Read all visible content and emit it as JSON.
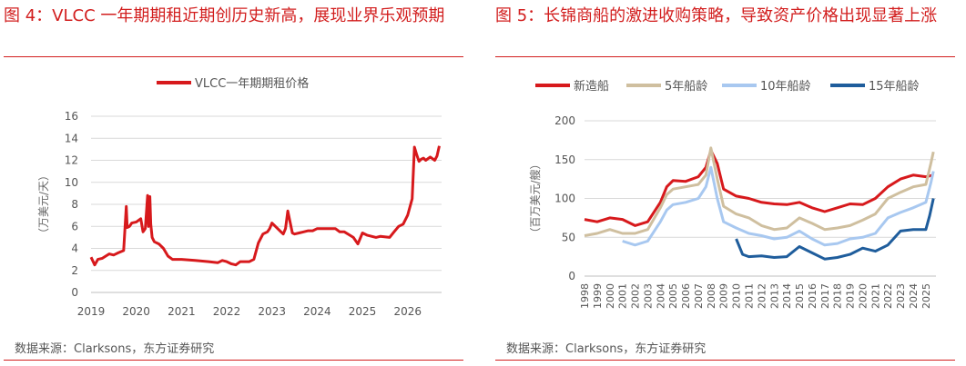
{
  "left": {
    "title": "图 4：VLCC 一年期期租近期创历史新高，展现业界乐观预期",
    "source": "数据来源：Clarksons，东方证券研究"
  },
  "right": {
    "title": "图 5：长锦商船的激进收购策略，导致资产价格出现显著上涨",
    "source": "数据来源：Clarksons，东方证券研究"
  },
  "chart_data": [
    {
      "type": "line",
      "title": "",
      "ylabel": "（万美元/天）",
      "xlabel": "",
      "ylim": [
        0,
        16
      ],
      "yticks": [
        0,
        2,
        4,
        6,
        8,
        10,
        12,
        14,
        16
      ],
      "xlim": [
        2019,
        2026.75
      ],
      "xticks": [
        "2019",
        "2020",
        "2021",
        "2022",
        "2023",
        "2024",
        "2025",
        "2026"
      ],
      "legend_position": "top-center",
      "grid": "horizontal",
      "colors": {
        "series": "#d7191c"
      },
      "series": [
        {
          "name": "VLCC一年期期租价格",
          "x": [
            2019.0,
            2019.08,
            2019.15,
            2019.25,
            2019.4,
            2019.5,
            2019.6,
            2019.72,
            2019.78,
            2019.8,
            2019.85,
            2019.9,
            2020.0,
            2020.1,
            2020.15,
            2020.2,
            2020.25,
            2020.27,
            2020.3,
            2020.32,
            2020.35,
            2020.4,
            2020.5,
            2020.6,
            2020.7,
            2020.8,
            2020.9,
            2021.0,
            2021.3,
            2021.6,
            2021.8,
            2021.9,
            2022.0,
            2022.1,
            2022.2,
            2022.3,
            2022.5,
            2022.6,
            2022.7,
            2022.8,
            2022.9,
            2022.95,
            2023.0,
            2023.2,
            2023.25,
            2023.3,
            2023.35,
            2023.45,
            2023.5,
            2023.6,
            2023.7,
            2023.8,
            2023.9,
            2024.0,
            2024.2,
            2024.4,
            2024.5,
            2024.6,
            2024.8,
            2024.9,
            2025.0,
            2025.1,
            2025.3,
            2025.4,
            2025.6,
            2025.7,
            2025.8,
            2025.9,
            2026.0,
            2026.1,
            2026.15,
            2026.2,
            2026.25,
            2026.3,
            2026.35,
            2026.4,
            2026.5,
            2026.6,
            2026.65,
            2026.7
          ],
          "values": [
            3.2,
            2.5,
            3.0,
            3.1,
            3.5,
            3.4,
            3.6,
            3.8,
            7.8,
            5.9,
            6.0,
            6.3,
            6.4,
            6.7,
            5.5,
            5.8,
            8.8,
            6.0,
            8.7,
            6.2,
            5.0,
            4.6,
            4.4,
            4.0,
            3.3,
            3.0,
            3.0,
            3.0,
            2.9,
            2.8,
            2.7,
            2.9,
            2.8,
            2.6,
            2.5,
            2.8,
            2.8,
            3.0,
            4.5,
            5.3,
            5.5,
            5.8,
            6.3,
            5.5,
            5.3,
            5.8,
            7.4,
            5.4,
            5.3,
            5.4,
            5.5,
            5.6,
            5.6,
            5.8,
            5.8,
            5.8,
            5.5,
            5.5,
            5.0,
            4.4,
            5.4,
            5.2,
            5.0,
            5.1,
            5.0,
            5.5,
            6.0,
            6.2,
            7.0,
            8.5,
            13.2,
            12.5,
            11.9,
            12.1,
            12.2,
            12.0,
            12.3,
            12.0,
            12.4,
            13.3
          ]
        }
      ]
    },
    {
      "type": "line",
      "title": "",
      "ylabel": "（百万美元/艘）",
      "xlabel": "",
      "ylim": [
        0,
        200
      ],
      "yticks": [
        0,
        50,
        100,
        150,
        200
      ],
      "xlim": [
        1998,
        2025.8
      ],
      "xticks": [
        "1998",
        "1999",
        "2000",
        "2001",
        "2002",
        "2003",
        "2004",
        "2005",
        "2006",
        "2007",
        "2008",
        "2009",
        "2010",
        "2011",
        "2012",
        "2013",
        "2014",
        "2015",
        "2016",
        "2017",
        "2018",
        "2019",
        "2020",
        "2021",
        "2022",
        "2023",
        "2024",
        "2025"
      ],
      "legend_position": "top",
      "grid": "horizontal",
      "colors": {
        "new": "#d7191c",
        "y5": "#cfbf9f",
        "y10": "#a8c8f0",
        "y15": "#1f5d9c"
      },
      "series": [
        {
          "name": "新造船",
          "x": [
            1998,
            1999,
            2000,
            2001,
            2002,
            2003,
            2004,
            2004.5,
            2005,
            2006,
            2007,
            2007.6,
            2008,
            2008.5,
            2009,
            2010,
            2011,
            2012,
            2013,
            2014,
            2015,
            2016,
            2017,
            2018,
            2019,
            2020,
            2021,
            2022,
            2023,
            2024,
            2025,
            2025.6
          ],
          "values": [
            73,
            70,
            75,
            73,
            65,
            70,
            95,
            115,
            123,
            122,
            128,
            140,
            162,
            145,
            112,
            103,
            100,
            95,
            93,
            92,
            95,
            88,
            83,
            88,
            93,
            92,
            100,
            115,
            125,
            130,
            128,
            130
          ]
        },
        {
          "name": "5年船龄",
          "x": [
            1998,
            1999,
            2000,
            2001,
            2002,
            2003,
            2004,
            2004.5,
            2005,
            2006,
            2007,
            2007.6,
            2008,
            2008.5,
            2009,
            2010,
            2011,
            2012,
            2013,
            2014,
            2015,
            2016,
            2017,
            2018,
            2019,
            2020,
            2021,
            2022,
            2023,
            2024,
            2025,
            2025.4,
            2025.6
          ],
          "values": [
            52,
            55,
            60,
            55,
            55,
            60,
            88,
            105,
            112,
            115,
            118,
            130,
            165,
            125,
            90,
            80,
            75,
            65,
            60,
            62,
            75,
            68,
            60,
            62,
            65,
            72,
            80,
            100,
            108,
            115,
            118,
            145,
            160
          ]
        },
        {
          "name": "10年船龄",
          "x": [
            2001,
            2002,
            2003,
            2004,
            2004.5,
            2005,
            2006,
            2007,
            2007.6,
            2008,
            2008.5,
            2009,
            2010,
            2011,
            2012,
            2013,
            2014,
            2015,
            2016,
            2017,
            2018,
            2019,
            2020,
            2021,
            2022,
            2023,
            2024,
            2025,
            2025.4,
            2025.6
          ],
          "values": [
            45,
            40,
            45,
            70,
            85,
            92,
            95,
            100,
            115,
            140,
            100,
            70,
            62,
            55,
            52,
            48,
            50,
            58,
            48,
            40,
            42,
            48,
            50,
            55,
            75,
            82,
            88,
            95,
            120,
            135
          ]
        },
        {
          "name": "15年船龄",
          "x": [
            2010,
            2010.5,
            2011,
            2012,
            2013,
            2014,
            2015,
            2016,
            2017,
            2018,
            2019,
            2020,
            2021,
            2022,
            2023,
            2024,
            2025,
            2025.3,
            2025.6
          ],
          "values": [
            48,
            28,
            25,
            26,
            24,
            25,
            38,
            30,
            22,
            24,
            28,
            36,
            32,
            40,
            58,
            60,
            60,
            78,
            100
          ]
        }
      ]
    }
  ]
}
